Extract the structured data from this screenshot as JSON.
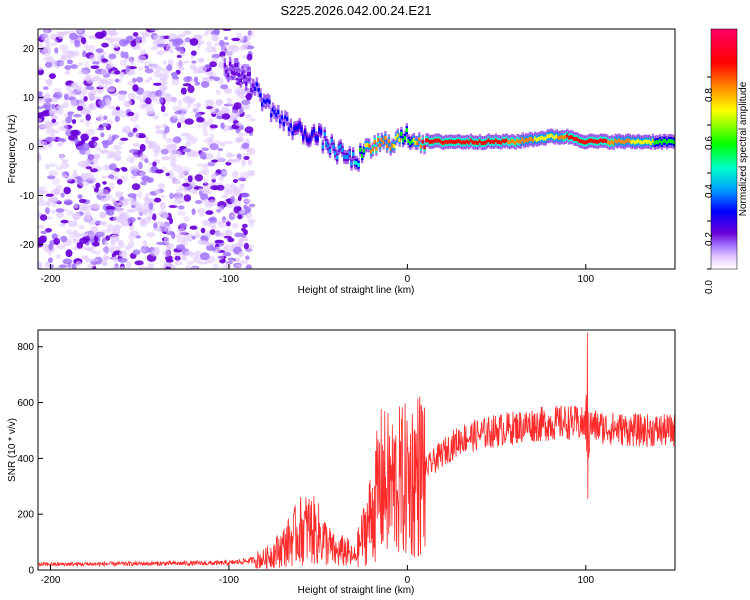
{
  "chart_data": [
    {
      "type": "heatmap",
      "title": "S225.2026.042.00.24.E21",
      "xlabel": "Height of straight line (km)",
      "ylabel": "Frequency (Hz)",
      "xlim": [
        -207,
        150
      ],
      "ylim": [
        -25,
        24
      ],
      "xticks": [
        -200,
        -100,
        0,
        100
      ],
      "yticks": [
        20,
        10,
        0,
        -10,
        -20
      ],
      "colorbar": {
        "label": "Normalized spectral amplitude",
        "range": [
          0,
          1
        ],
        "ticks": [
          0.0,
          0.2,
          0.4,
          0.6,
          0.8
        ],
        "colors": [
          "#ffffff",
          "#e6c8ff",
          "#a070ff",
          "#6a00d8",
          "#0000ff",
          "#00a0ff",
          "#00ffcc",
          "#00ff00",
          "#ffff00",
          "#ff8800",
          "#ff0000",
          "#ff0066"
        ]
      },
      "ridge": {
        "x": [
          -100,
          -90,
          -80,
          -70,
          -60,
          -50,
          -40,
          -30,
          -20,
          -10,
          0,
          10,
          30,
          60,
          80,
          90,
          100,
          120,
          150
        ],
        "freq_hz": [
          16,
          14,
          9,
          5,
          3,
          2,
          -1,
          -3,
          0,
          1,
          2,
          1,
          1,
          1,
          2,
          2,
          1,
          1,
          1
        ],
        "amplitude": [
          0.25,
          0.3,
          0.35,
          0.35,
          0.4,
          0.4,
          0.45,
          0.5,
          0.85,
          0.8,
          0.6,
          0.95,
          0.95,
          0.85,
          0.7,
          0.9,
          0.95,
          0.8,
          0.6
        ]
      }
    },
    {
      "type": "line",
      "xlabel": "Height of straight line (km)",
      "ylabel": "SNR (10 * v/v)",
      "xlim": [
        -207,
        150
      ],
      "ylim": [
        0,
        860
      ],
      "xticks": [
        -200,
        -100,
        0,
        100
      ],
      "yticks": [
        0,
        200,
        400,
        600,
        800
      ],
      "color": "#ff2a2a",
      "envelope": {
        "x": [
          -207,
          -100,
          -80,
          -70,
          -60,
          -55,
          -50,
          -40,
          -35,
          -30,
          -20,
          -15,
          -10,
          0,
          10,
          20,
          30,
          50,
          70,
          90,
          100,
          110,
          130,
          150
        ],
        "snr": [
          20,
          25,
          40,
          80,
          140,
          150,
          130,
          60,
          70,
          40,
          200,
          310,
          300,
          320,
          360,
          420,
          470,
          500,
          520,
          530,
          520,
          510,
          500,
          500
        ]
      },
      "spike": {
        "x": 101,
        "snr_max": 850,
        "snr_min": 255
      }
    }
  ]
}
